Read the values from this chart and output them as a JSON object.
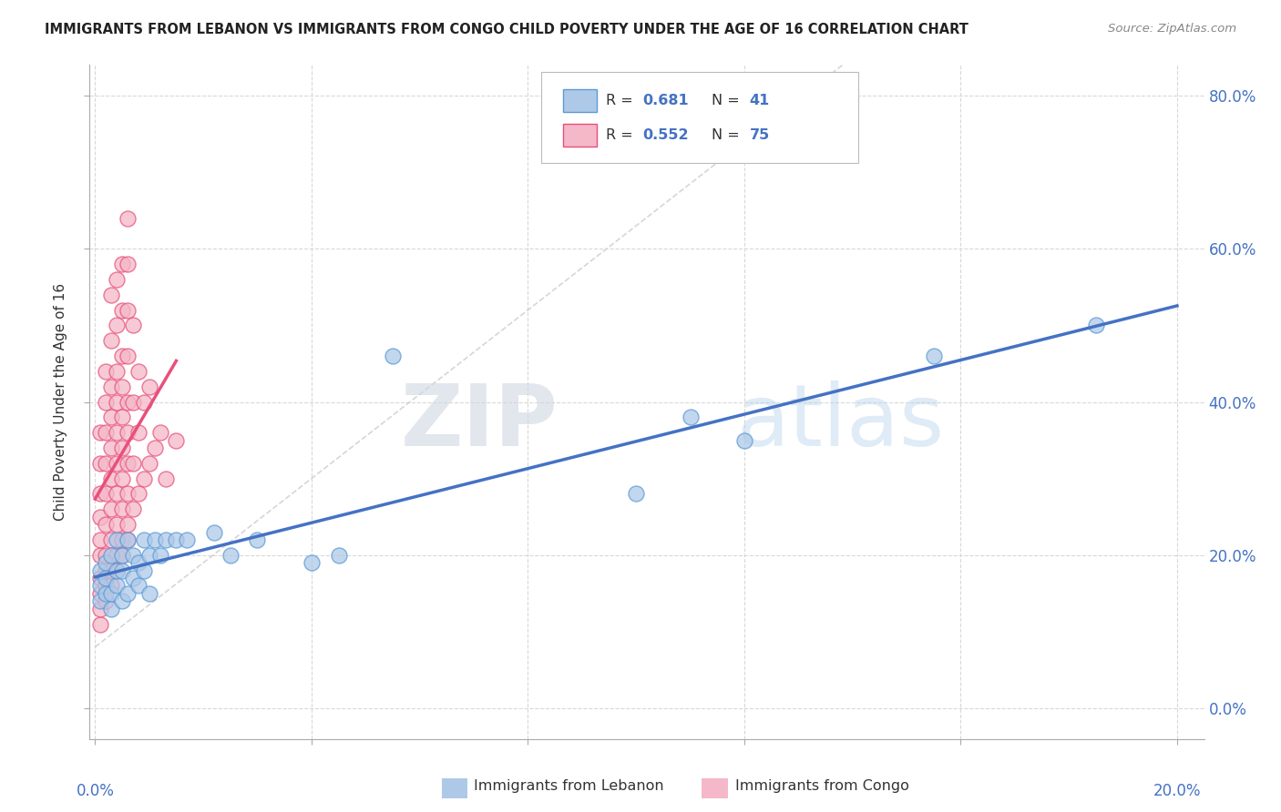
{
  "title": "IMMIGRANTS FROM LEBANON VS IMMIGRANTS FROM CONGO CHILD POVERTY UNDER THE AGE OF 16 CORRELATION CHART",
  "source": "Source: ZipAtlas.com",
  "ylabel": "Child Poverty Under the Age of 16",
  "ylabel_right_ticks": [
    "0.0%",
    "20.0%",
    "40.0%",
    "60.0%",
    "80.0%"
  ],
  "ylabel_right_vals": [
    0.0,
    0.2,
    0.4,
    0.6,
    0.8
  ],
  "xlim": [
    -0.001,
    0.205
  ],
  "ylim": [
    -0.04,
    0.84
  ],
  "r_lebanon": "0.681",
  "n_lebanon": "41",
  "r_congo": "0.552",
  "n_congo": "75",
  "color_lebanon_fill": "#aec9e8",
  "color_lebanon_edge": "#5b9bd5",
  "color_congo_fill": "#f4b8c8",
  "color_congo_edge": "#e8507a",
  "color_lebanon_line": "#4472c4",
  "color_congo_line": "#e8507a",
  "color_diag_line": "#d4a0a8",
  "legend_text_color": "#4472c4",
  "watermark_zip": "ZIP",
  "watermark_atlas": "atlas",
  "lebanon_x": [
    0.001,
    0.001,
    0.001,
    0.002,
    0.002,
    0.002,
    0.003,
    0.003,
    0.003,
    0.004,
    0.004,
    0.004,
    0.005,
    0.005,
    0.005,
    0.006,
    0.006,
    0.007,
    0.007,
    0.008,
    0.008,
    0.009,
    0.009,
    0.01,
    0.01,
    0.011,
    0.012,
    0.013,
    0.015,
    0.017,
    0.022,
    0.025,
    0.03,
    0.04,
    0.045,
    0.055,
    0.1,
    0.11,
    0.12,
    0.155,
    0.185
  ],
  "lebanon_y": [
    0.14,
    0.16,
    0.18,
    0.15,
    0.17,
    0.19,
    0.13,
    0.15,
    0.2,
    0.16,
    0.18,
    0.22,
    0.14,
    0.18,
    0.2,
    0.15,
    0.22,
    0.17,
    0.2,
    0.16,
    0.19,
    0.18,
    0.22,
    0.15,
    0.2,
    0.22,
    0.2,
    0.22,
    0.22,
    0.22,
    0.23,
    0.2,
    0.22,
    0.19,
    0.2,
    0.46,
    0.28,
    0.38,
    0.35,
    0.46,
    0.5
  ],
  "congo_x": [
    0.001,
    0.001,
    0.001,
    0.001,
    0.001,
    0.001,
    0.001,
    0.001,
    0.001,
    0.001,
    0.002,
    0.002,
    0.002,
    0.002,
    0.002,
    0.002,
    0.002,
    0.002,
    0.002,
    0.002,
    0.003,
    0.003,
    0.003,
    0.003,
    0.003,
    0.003,
    0.003,
    0.003,
    0.003,
    0.003,
    0.004,
    0.004,
    0.004,
    0.004,
    0.004,
    0.004,
    0.004,
    0.004,
    0.004,
    0.004,
    0.005,
    0.005,
    0.005,
    0.005,
    0.005,
    0.005,
    0.005,
    0.005,
    0.005,
    0.005,
    0.006,
    0.006,
    0.006,
    0.006,
    0.006,
    0.006,
    0.006,
    0.006,
    0.006,
    0.006,
    0.007,
    0.007,
    0.007,
    0.007,
    0.008,
    0.008,
    0.008,
    0.009,
    0.009,
    0.01,
    0.01,
    0.011,
    0.012,
    0.013,
    0.015
  ],
  "congo_y": [
    0.11,
    0.13,
    0.15,
    0.17,
    0.2,
    0.22,
    0.25,
    0.28,
    0.32,
    0.36,
    0.14,
    0.16,
    0.18,
    0.2,
    0.24,
    0.28,
    0.32,
    0.36,
    0.4,
    0.44,
    0.16,
    0.18,
    0.22,
    0.26,
    0.3,
    0.34,
    0.38,
    0.42,
    0.48,
    0.54,
    0.18,
    0.2,
    0.24,
    0.28,
    0.32,
    0.36,
    0.4,
    0.44,
    0.5,
    0.56,
    0.2,
    0.22,
    0.26,
    0.3,
    0.34,
    0.38,
    0.42,
    0.46,
    0.52,
    0.58,
    0.22,
    0.24,
    0.28,
    0.32,
    0.36,
    0.4,
    0.46,
    0.52,
    0.58,
    0.64,
    0.26,
    0.32,
    0.4,
    0.5,
    0.28,
    0.36,
    0.44,
    0.3,
    0.4,
    0.32,
    0.42,
    0.34,
    0.36,
    0.3,
    0.35
  ]
}
